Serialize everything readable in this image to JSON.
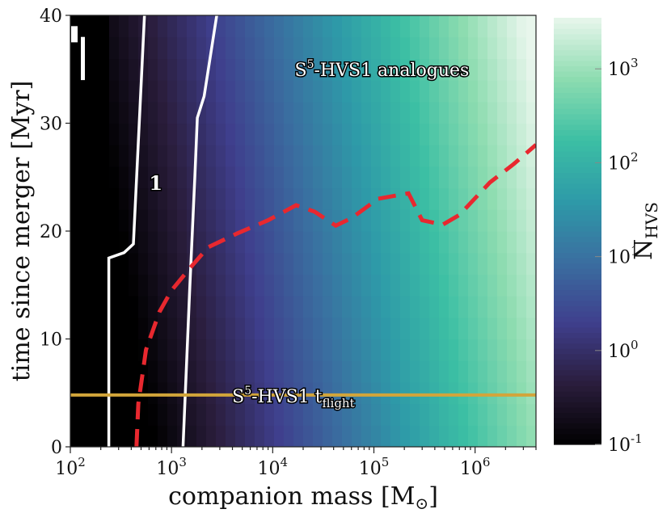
{
  "chart_data": {
    "type": "heatmap",
    "title": "",
    "xlabel": "companion mass [M",
    "xlabel_sub": "⊙",
    "xlabel_close": "]",
    "ylabel": "time since merger [Myr]",
    "colorbar_label": "N",
    "colorbar_label_sub": "HVS",
    "x_scale": "log",
    "x_range": [
      100,
      4000000
    ],
    "y_range": [
      0,
      40
    ],
    "x_ticks": [
      {
        "base": "10",
        "exp": "2",
        "value": 100
      },
      {
        "base": "10",
        "exp": "3",
        "value": 1000
      },
      {
        "base": "10",
        "exp": "4",
        "value": 10000
      },
      {
        "base": "10",
        "exp": "5",
        "value": 100000
      },
      {
        "base": "10",
        "exp": "6",
        "value": 1000000
      }
    ],
    "y_ticks": [
      {
        "label": "0",
        "value": 0
      },
      {
        "label": "10",
        "value": 10
      },
      {
        "label": "20",
        "value": 20
      },
      {
        "label": "30",
        "value": 30
      },
      {
        "label": "40",
        "value": 40
      }
    ],
    "colorbar": {
      "scale": "log",
      "range": [
        0.1,
        3500
      ],
      "ticks": [
        {
          "base": "10",
          "exp": "-1",
          "value": 0.1
        },
        {
          "base": "10",
          "exp": "0",
          "value": 1
        },
        {
          "base": "10",
          "exp": "1",
          "value": 10
        },
        {
          "base": "10",
          "exp": "2",
          "value": 100
        },
        {
          "base": "10",
          "exp": "3",
          "value": 1000
        }
      ],
      "colormap": [
        "#000000",
        "#2a1d3c",
        "#3f3f8d",
        "#3a6ea0",
        "#2e9aa8",
        "#3cbfa4",
        "#8ddcb0",
        "#e8f6ec"
      ]
    },
    "heatmap_model": "N_HVS grows with companion mass; weak increase with time",
    "contours": [
      {
        "level": 0.1,
        "label": "",
        "color": "#ffffff",
        "points": [
          [
            240,
            0
          ],
          [
            240,
            17.5
          ],
          [
            340,
            18
          ],
          [
            420,
            18.8
          ],
          [
            540,
            40
          ]
        ]
      },
      {
        "level": 1,
        "label": "1",
        "color": "#ffffff",
        "points": [
          [
            1300,
            0
          ],
          [
            1520,
            15
          ],
          [
            1700,
            25
          ],
          [
            1800,
            30.5
          ],
          [
            2100,
            32.5
          ],
          [
            2800,
            40
          ]
        ]
      }
    ],
    "dashed_line": {
      "color": "#e8282f",
      "points": [
        [
          450,
          0
        ],
        [
          470,
          4
        ],
        [
          560,
          9
        ],
        [
          760,
          12.5
        ],
        [
          1000,
          14.5
        ],
        [
          1500,
          16.5
        ],
        [
          2300,
          18.5
        ],
        [
          4500,
          19.8
        ],
        [
          9000,
          21
        ],
        [
          17000,
          22.4
        ],
        [
          26000,
          21.8
        ],
        [
          42000,
          20.5
        ],
        [
          60000,
          21.2
        ],
        [
          110000,
          23
        ],
        [
          220000,
          23.5
        ],
        [
          300000,
          21
        ],
        [
          480000,
          20.6
        ],
        [
          700000,
          21.5
        ],
        [
          1400000,
          24.5
        ],
        [
          2400000,
          26.2
        ],
        [
          4000000,
          28
        ]
      ]
    },
    "hline": {
      "y": 4.8,
      "color": "#d2a53a",
      "label": "S",
      "label_sup": "5",
      "label_rest": "-HVS1 t",
      "label_sub": "flight"
    },
    "annotations": [
      {
        "text": "S",
        "sup": "5",
        "rest": "-HVS1 analogues",
        "x": 120000,
        "y": 35
      }
    ],
    "contour_label_1": {
      "text": "1",
      "x": 700,
      "y": 24.5
    }
  }
}
